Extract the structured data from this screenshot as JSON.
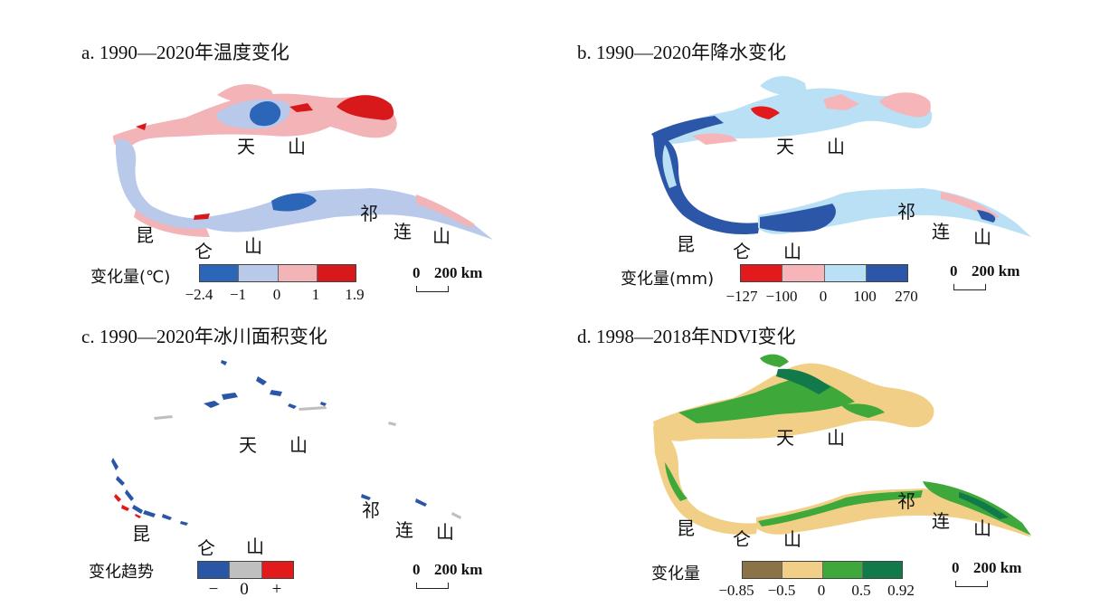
{
  "panels": {
    "a": {
      "title": "a. 1990—2020年温度变化",
      "legend_label": "变化量(℃)",
      "legend_ticks": [
        "−2.4",
        "−1",
        "0",
        "1",
        "1.9"
      ],
      "legend_colors": [
        "#2b66b8",
        "#b8c9ea",
        "#f2b4b6",
        "#d7191c"
      ]
    },
    "b": {
      "title": "b. 1990—2020年降水变化",
      "legend_label": "变化量(mm)",
      "legend_ticks": [
        "−127",
        "−100",
        "0",
        "100",
        "270"
      ],
      "legend_colors": [
        "#e31a1c",
        "#f6b5b8",
        "#b9e0f4",
        "#2c57a8"
      ]
    },
    "c": {
      "title": "c. 1990—2020年冰川面积变化",
      "legend_label": "变化趋势",
      "legend_ticks": [
        "−",
        "0",
        "+"
      ],
      "legend_colors": [
        "#2a56a6",
        "#bfbfbf",
        "#e31a1c"
      ]
    },
    "d": {
      "title": "d. 1998—2018年NDVI变化",
      "legend_label": "变化量",
      "legend_ticks": [
        "−0.85",
        "−0.5",
        "0",
        "0.5",
        "0.92"
      ],
      "legend_colors": [
        "#8b7347",
        "#f2cf86",
        "#3ea83a",
        "#12794a"
      ]
    }
  },
  "map_labels": {
    "tianshan_1": "天",
    "tianshan_2": "山",
    "kunlun_1": "昆",
    "kunlun_2": "仑",
    "kunlun_3": "山",
    "qilian_1": "祁",
    "qilian_2": "连",
    "qilian_3": "山"
  },
  "scale_bar": {
    "zero": "0",
    "distance": "200 km"
  }
}
